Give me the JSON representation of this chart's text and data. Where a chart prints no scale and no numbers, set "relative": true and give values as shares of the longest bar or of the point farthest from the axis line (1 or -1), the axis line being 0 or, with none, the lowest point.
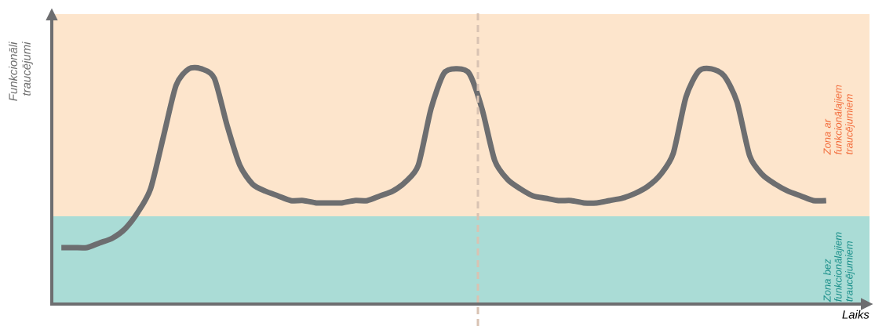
{
  "chart_data": {
    "type": "line",
    "relative": true,
    "xlabel": "Laiks",
    "ylabel": "Funkcionāli traucējumi",
    "categories": [
      null,
      null,
      null,
      null,
      null,
      null,
      null,
      null,
      null,
      null,
      null,
      null,
      null,
      null,
      null,
      null,
      null,
      null,
      null,
      null,
      null,
      null,
      null,
      null,
      null,
      null,
      null,
      null,
      null,
      null,
      null,
      null,
      null,
      null,
      null,
      null,
      null,
      null,
      null,
      null,
      null,
      null,
      null,
      null,
      null,
      null,
      null,
      null,
      null,
      null,
      null,
      null,
      null,
      null,
      null,
      null,
      null,
      null,
      null,
      null,
      null
    ],
    "series": [
      {
        "color": "#6d6e70",
        "values": [
          0.24,
          0.24,
          0.24,
          0.26,
          0.28,
          0.32,
          0.39,
          0.49,
          0.71,
          0.93,
          1.0,
          1.0,
          0.96,
          0.76,
          0.59,
          0.51,
          0.48,
          0.46,
          0.44,
          0.44,
          0.43,
          0.43,
          0.43,
          0.44,
          0.44,
          0.46,
          0.48,
          0.52,
          0.59,
          0.83,
          0.98,
          1.0,
          0.98,
          0.83,
          0.61,
          0.53,
          0.49,
          0.46,
          0.45,
          0.44,
          0.44,
          0.43,
          0.43,
          0.44,
          0.45,
          0.47,
          0.5,
          0.55,
          0.64,
          0.88,
          0.99,
          1.0,
          0.97,
          0.86,
          0.63,
          0.55,
          0.51,
          0.48,
          0.46,
          0.44,
          0.44
        ]
      }
    ],
    "bands": [
      {
        "axis": "y",
        "from": 0,
        "to": 0.373,
        "label": "Zona bez funkcionālajiem traucējumiem",
        "color": "#aadcd6"
      },
      {
        "axis": "y",
        "from": 0.373,
        "to": 1.233,
        "label": "Zona ar funkcionālajiem traucējumiem",
        "color": "#fde5cc"
      }
    ],
    "marker": "none",
    "line_style": "solid"
  }
}
